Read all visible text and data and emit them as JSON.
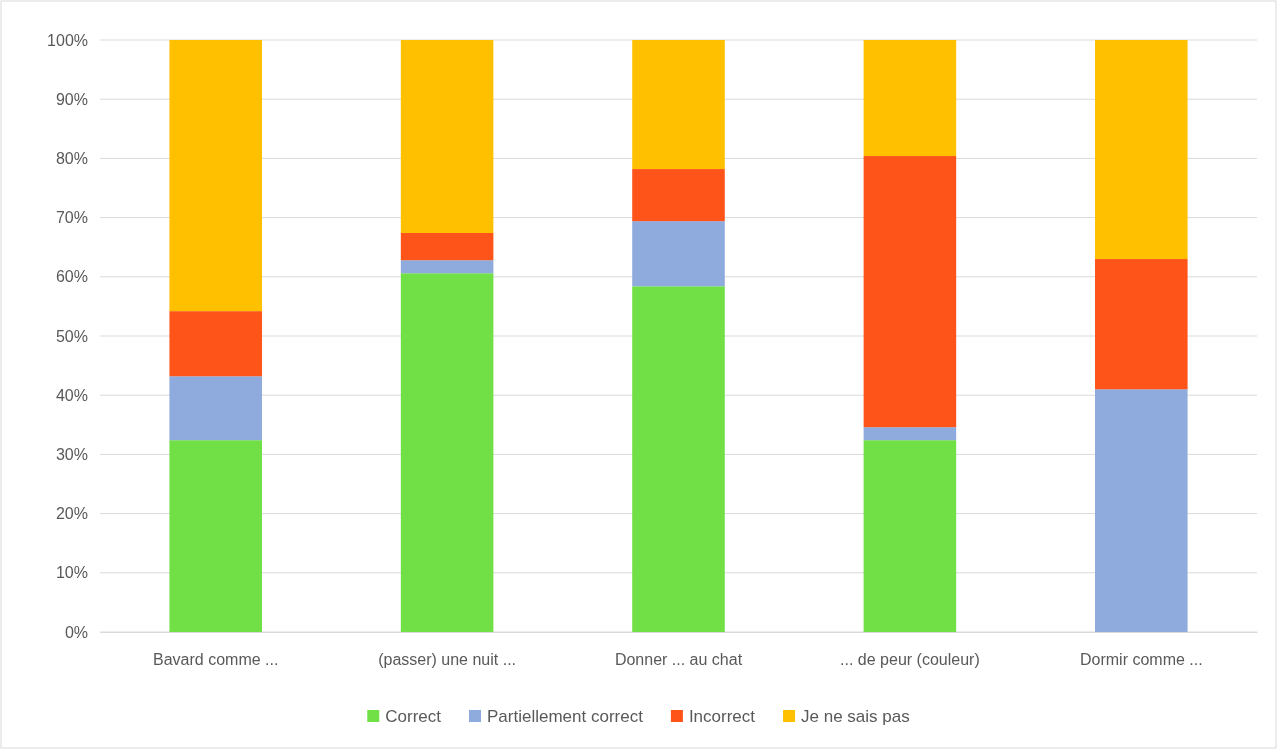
{
  "chart_data": {
    "type": "bar",
    "stacked": true,
    "categories": [
      "Bavard comme ...",
      "(passer) une nuit ...",
      "Donner ... au chat",
      "... de peur (couleur)",
      "Dormir comme ..."
    ],
    "series": [
      {
        "name": "Correct",
        "color": "#70e046",
        "values": [
          32.4,
          60.6,
          58.4,
          32.4,
          0
        ]
      },
      {
        "name": "Partiellement correct",
        "color": "#8faadc",
        "values": [
          10.8,
          2.2,
          11.0,
          2.2,
          41.0
        ]
      },
      {
        "name": "Incorrect",
        "color": "#ff5419",
        "values": [
          11.0,
          4.6,
          8.8,
          45.8,
          22.0
        ]
      },
      {
        "name": "Je ne sais pas",
        "color": "#ffc000",
        "values": [
          45.8,
          32.6,
          21.8,
          19.6,
          37.0
        ]
      }
    ],
    "ylim": [
      0,
      100
    ],
    "yticks": [
      {
        "value": 0,
        "label": "0%"
      },
      {
        "value": 10,
        "label": "10%"
      },
      {
        "value": 20,
        "label": "20%"
      },
      {
        "value": 30,
        "label": "30%"
      },
      {
        "value": 40,
        "label": "40%"
      },
      {
        "value": 50,
        "label": "50%"
      },
      {
        "value": 60,
        "label": "60%"
      },
      {
        "value": 70,
        "label": "70%"
      },
      {
        "value": 80,
        "label": "80%"
      },
      {
        "value": 90,
        "label": "90%"
      },
      {
        "value": 100,
        "label": "100%"
      }
    ],
    "grid": "y",
    "legend": "bottom"
  }
}
